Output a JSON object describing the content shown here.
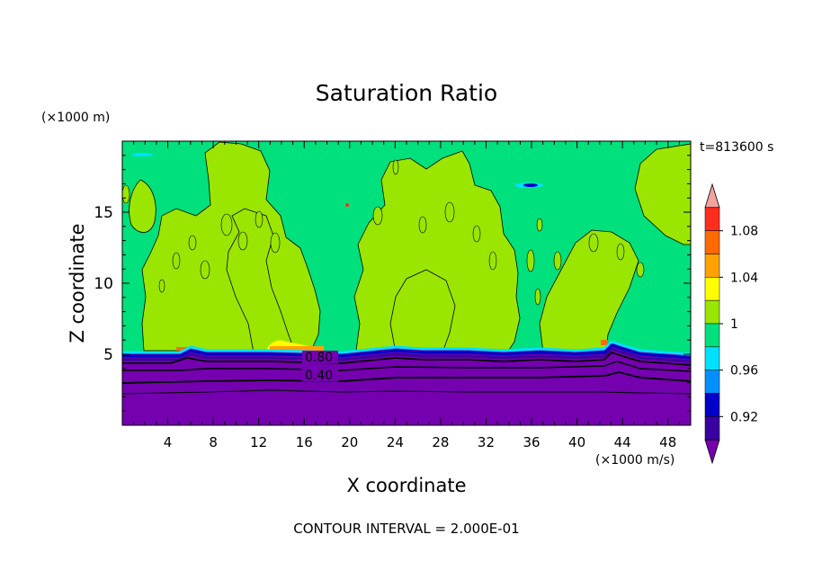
{
  "chart_data": {
    "type": "heatmap",
    "title": "Saturation Ratio",
    "xlabel": "X coordinate",
    "ylabel": "Z coordinate",
    "x_unit": "(×1000 m/s)",
    "y_unit": "(×1000 m)",
    "time_label": "t=813600 s",
    "footer": "CONTOUR INTERVAL = 2.000E-01",
    "xlim": [
      0,
      50
    ],
    "ylim": [
      0,
      20
    ],
    "x_ticks": [
      4,
      8,
      12,
      16,
      20,
      24,
      28,
      32,
      36,
      40,
      44,
      48
    ],
    "y_ticks": [
      5,
      10,
      15
    ],
    "contour_labels": [
      {
        "text": "0.80",
        "x": 16.2,
        "z": 4.7
      },
      {
        "text": "0.40",
        "x": 16.2,
        "z": 3.5
      }
    ],
    "colorbar": {
      "levels": [
        "0.92",
        "0.96",
        "1",
        "1.04",
        "1.08"
      ],
      "colors": [
        "#f4a3a0",
        "#ff2d1e",
        "#ff6a00",
        "#ffa200",
        "#ffff00",
        "#9ae600",
        "#00e07c",
        "#00e0ff",
        "#0090ff",
        "#0000c8",
        "#3a00a0",
        "#7400b0"
      ]
    },
    "regions": [
      {
        "name": "lower-layer",
        "range": "below ~0.92",
        "z": [
          0,
          5.1
        ]
      },
      {
        "name": "upper-background",
        "range": "1 to 1.02",
        "z": [
          5.1,
          20
        ]
      },
      {
        "name": "cloud-columns",
        "range": "1.02 to 1.04",
        "x_extents": [
          [
            2,
            14
          ],
          [
            18,
            23.5
          ],
          [
            24,
            35
          ],
          [
            40,
            46
          ]
        ]
      }
    ]
  }
}
